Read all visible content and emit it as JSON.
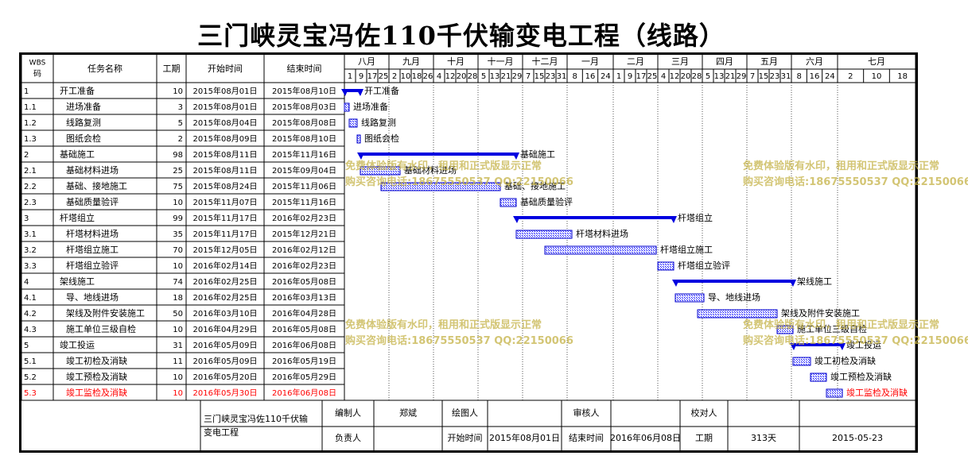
{
  "title": "三门峡灵宝冯佐110千伏输变电工程（线路）",
  "table_headers": {
    "wbs": "WBS码",
    "name": "任务名称",
    "duration": "工期",
    "start": "开始时间",
    "end": "结束时间"
  },
  "timeline": {
    "months": [
      {
        "label": "八月",
        "days": [
          "1",
          "9",
          "17",
          "25"
        ]
      },
      {
        "label": "九月",
        "days": [
          "2",
          "10",
          "18",
          "26"
        ]
      },
      {
        "label": "十月",
        "days": [
          "4",
          "12",
          "20",
          "28"
        ]
      },
      {
        "label": "十一月",
        "days": [
          "5",
          "13",
          "21",
          "29"
        ]
      },
      {
        "label": "十二月",
        "days": [
          "7",
          "15",
          "23",
          "31"
        ]
      },
      {
        "label": "一月",
        "days": [
          "8",
          "16",
          "24"
        ]
      },
      {
        "label": "二月",
        "days": [
          "1",
          "9",
          "17",
          "25"
        ]
      },
      {
        "label": "三月",
        "days": [
          "4",
          "12",
          "20",
          "28"
        ]
      },
      {
        "label": "四月",
        "days": [
          "5",
          "13",
          "21",
          "29"
        ]
      },
      {
        "label": "五月",
        "days": [
          "7",
          "15",
          "23",
          "31"
        ]
      },
      {
        "label": "六月",
        "days": [
          "8",
          "16",
          "24"
        ]
      },
      {
        "label": "七月",
        "days": [
          "2",
          "10",
          "18"
        ]
      }
    ]
  },
  "chart_data": {
    "type": "gantt",
    "x_range": [
      "2015-08-01",
      "2016-07-19"
    ],
    "tasks": [
      {
        "wbs": "1",
        "name": "开工准备",
        "duration": "10",
        "start": "2015年08月01日",
        "end": "2015年08月10日",
        "start_date": "2015-08-01",
        "end_date": "2015-08-10",
        "summary": true,
        "critical": false
      },
      {
        "wbs": "1.1",
        "name": "进场准备",
        "duration": "3",
        "start": "2015年08月01日",
        "end": "2015年08月03日",
        "start_date": "2015-08-01",
        "end_date": "2015-08-03",
        "summary": false,
        "critical": false
      },
      {
        "wbs": "1.2",
        "name": "线路复测",
        "duration": "5",
        "start": "2015年08月04日",
        "end": "2015年08月08日",
        "start_date": "2015-08-04",
        "end_date": "2015-08-08",
        "summary": false,
        "critical": false
      },
      {
        "wbs": "1.3",
        "name": "图纸会检",
        "duration": "2",
        "start": "2015年08月09日",
        "end": "2015年08月10日",
        "start_date": "2015-08-09",
        "end_date": "2015-08-10",
        "summary": false,
        "critical": false
      },
      {
        "wbs": "2",
        "name": "基础施工",
        "duration": "98",
        "start": "2015年08月11日",
        "end": "2015年11月16日",
        "start_date": "2015-08-11",
        "end_date": "2015-11-16",
        "summary": true,
        "critical": false
      },
      {
        "wbs": "2.1",
        "name": "基础材料进场",
        "duration": "25",
        "start": "2015年08月11日",
        "end": "2015年09月04日",
        "start_date": "2015-08-11",
        "end_date": "2015-09-04",
        "summary": false,
        "critical": false
      },
      {
        "wbs": "2.2",
        "name": "基础、接地施工",
        "duration": "75",
        "start": "2015年08月24日",
        "end": "2015年11月06日",
        "start_date": "2015-08-24",
        "end_date": "2015-11-06",
        "summary": false,
        "critical": false
      },
      {
        "wbs": "2.3",
        "name": "基础质量验评",
        "duration": "10",
        "start": "2015年11月07日",
        "end": "2015年11月16日",
        "start_date": "2015-11-07",
        "end_date": "2015-11-16",
        "summary": false,
        "critical": false
      },
      {
        "wbs": "3",
        "name": "杆塔组立",
        "duration": "99",
        "start": "2015年11月17日",
        "end": "2016年02月23日",
        "start_date": "2015-11-17",
        "end_date": "2016-02-23",
        "summary": true,
        "critical": false
      },
      {
        "wbs": "3.1",
        "name": "杆塔材料进场",
        "duration": "35",
        "start": "2015年11月17日",
        "end": "2015年12月21日",
        "start_date": "2015-11-17",
        "end_date": "2015-12-21",
        "summary": false,
        "critical": false
      },
      {
        "wbs": "3.2",
        "name": "杆塔组立施工",
        "duration": "70",
        "start": "2015年12月05日",
        "end": "2016年02月12日",
        "start_date": "2015-12-05",
        "end_date": "2016-02-12",
        "summary": false,
        "critical": false
      },
      {
        "wbs": "3.3",
        "name": "杆塔组立验评",
        "duration": "10",
        "start": "2016年02月14日",
        "end": "2016年02月23日",
        "start_date": "2016-02-14",
        "end_date": "2016-02-23",
        "summary": false,
        "critical": false
      },
      {
        "wbs": "4",
        "name": "架线施工",
        "duration": "74",
        "start": "2016年02月25日",
        "end": "2016年05月08日",
        "start_date": "2016-02-25",
        "end_date": "2016-05-08",
        "summary": true,
        "critical": false
      },
      {
        "wbs": "4.1",
        "name": "导、地线进场",
        "duration": "18",
        "start": "2016年02月25日",
        "end": "2016年03月13日",
        "start_date": "2016-02-25",
        "end_date": "2016-03-13",
        "summary": false,
        "critical": false
      },
      {
        "wbs": "4.2",
        "name": "架线及附件安装施工",
        "duration": "50",
        "start": "2016年03月10日",
        "end": "2016年04月28日",
        "start_date": "2016-03-10",
        "end_date": "2016-04-28",
        "summary": false,
        "critical": false
      },
      {
        "wbs": "4.3",
        "name": "施工单位三级自检",
        "duration": "10",
        "start": "2016年04月29日",
        "end": "2016年05月08日",
        "start_date": "2016-04-29",
        "end_date": "2016-05-08",
        "summary": false,
        "critical": false
      },
      {
        "wbs": "5",
        "name": "竣工投运",
        "duration": "31",
        "start": "2016年05月09日",
        "end": "2016年06月08日",
        "start_date": "2016-05-09",
        "end_date": "2016-06-08",
        "summary": true,
        "critical": false
      },
      {
        "wbs": "5.1",
        "name": "竣工初检及消缺",
        "duration": "11",
        "start": "2016年05月09日",
        "end": "2016年05月19日",
        "start_date": "2016-05-09",
        "end_date": "2016-05-19",
        "summary": false,
        "critical": false
      },
      {
        "wbs": "5.2",
        "name": "竣工预检及消缺",
        "duration": "10",
        "start": "2016年05月20日",
        "end": "2016年05月29日",
        "start_date": "2016-05-20",
        "end_date": "2016-05-29",
        "summary": false,
        "critical": false
      },
      {
        "wbs": "5.3",
        "name": "竣工监检及消缺",
        "duration": "10",
        "start": "2016年05月30日",
        "end": "2016年06月08日",
        "start_date": "2016-05-30",
        "end_date": "2016-06-08",
        "summary": false,
        "critical": true
      }
    ]
  },
  "footer": {
    "project": "三门峡灵宝冯佐110千伏输变电工程",
    "editor_label": "编制人",
    "editor": "郑斌",
    "drawer_label": "绘图人",
    "drawer": "",
    "reviewer_label": "审核人",
    "reviewer": "",
    "checker_label": "校对人",
    "checker": "",
    "owner_label": "负责人",
    "owner": "",
    "start_label": "开始时间",
    "start": "2015年08月01日",
    "end_label": "结束时间",
    "end": "2016年06月08日",
    "duration_label": "工期",
    "duration": "313天",
    "date": "2015-05-23"
  },
  "watermark": {
    "line1": "免费体验版有水印，租用和正式版显示正常",
    "line2": "购买咨询电话:18675550537 QQ:22150066"
  },
  "colors": {
    "bar": "#0000ff",
    "summary": "#0000e0",
    "critical": "#ff0000",
    "grid": "#000000"
  }
}
